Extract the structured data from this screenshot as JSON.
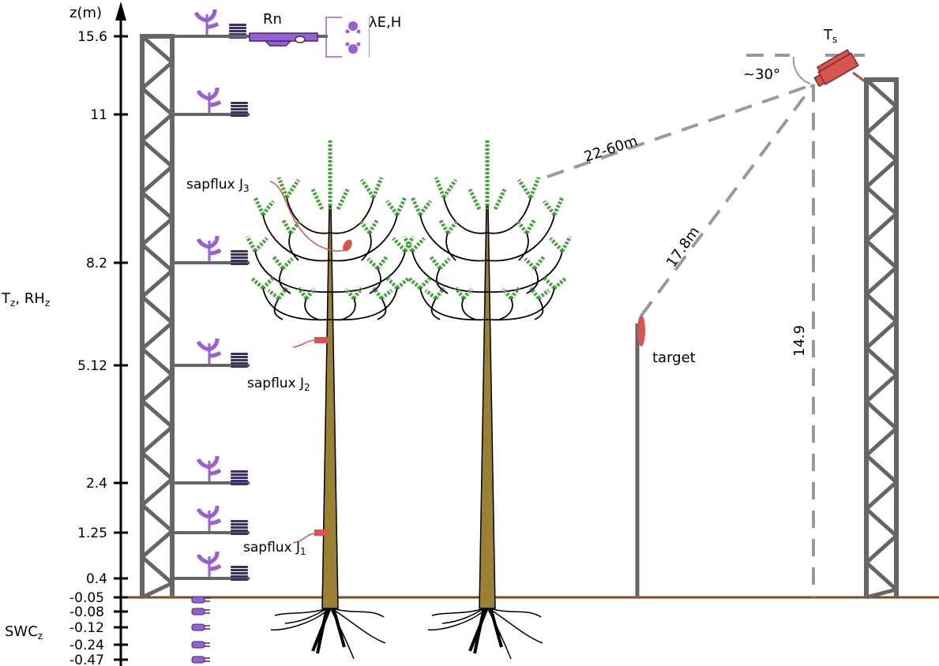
{
  "axis": {
    "title": "z(m)",
    "above_ground_ticks": [
      "15.6",
      "11",
      "8.2",
      "5.12",
      "2.4",
      "1.25",
      "0.4"
    ],
    "soil_ticks": [
      "-0.05",
      "-0.08",
      "-0.12",
      "-0.24",
      "-0.47"
    ]
  },
  "labels": {
    "t_rh_main": "T",
    "t_rh_sub1": "z",
    "t_rh_mid": ", RH",
    "t_rh_sub2": "z",
    "swc_main": "SWC",
    "swc_sub": "z",
    "rn": "Rn",
    "le_h": "λE,H",
    "ts_main": "T",
    "ts_sub": "s",
    "angle": "~30°",
    "dist_far": "22-60m",
    "dist_near": "17.8m",
    "tower_height": "14.9",
    "target": "target",
    "sapflux_prefix": "sapflux J",
    "sapflux_j3_sub": "3",
    "sapflux_j2_sub": "2",
    "sapflux_j1_sub": "1"
  },
  "colors": {
    "tower": "#666666",
    "sensor": "#9a5ed8",
    "sensor_dark": "#3b2d6e",
    "ground": "#7f4a1f",
    "trunk": "#9a8132",
    "foliage": "#3fa636",
    "branch": "#000000",
    "sapflux": "#d9534f",
    "dashed": "#999999"
  },
  "icons": [
    "anemometer-icon",
    "radiation-shield-icon",
    "net-radiometer-icon",
    "eddy-covariance-icon",
    "soil-probe-icon",
    "thermal-camera-icon"
  ]
}
